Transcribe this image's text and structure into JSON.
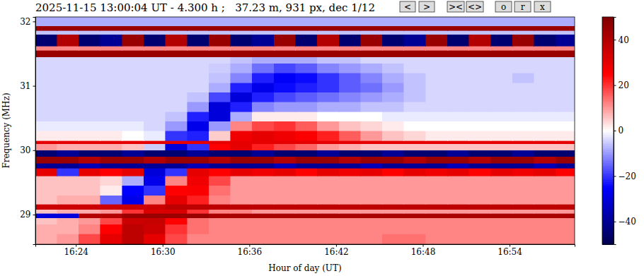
{
  "chart_data": {
    "type": "heatmap",
    "title": "2025-11-15 13:00:04 UT - 4.300 h ;   37.23 m, 931 px, dec 1/12",
    "buttons": [
      "<",
      ">",
      "><",
      "<>",
      "o",
      "r",
      "x"
    ],
    "x_label": "Hour of day (UT)",
    "y_label": "Frequency (MHz)",
    "xlim": [
      981.2,
      1018.5
    ],
    "xticks": [
      {
        "value": 984,
        "label": "16:24"
      },
      {
        "value": 990,
        "label": "16:30"
      },
      {
        "value": 996,
        "label": "16:36"
      },
      {
        "value": 1002,
        "label": "16:42"
      },
      {
        "value": 1008,
        "label": "16:48"
      },
      {
        "value": 1014,
        "label": "16:54"
      }
    ],
    "ylim": [
      28.54,
      32.07
    ],
    "yticks": [
      29,
      30,
      31,
      32
    ],
    "x_bins": [
      981.2,
      982.7,
      984.2,
      985.7,
      987.2,
      988.7,
      990.2,
      991.7,
      993.2,
      994.7,
      996.2,
      997.7,
      999.2,
      1000.7,
      1002.2,
      1003.7,
      1005.2,
      1006.7,
      1008.2,
      1009.7,
      1011.2,
      1012.7,
      1014.2,
      1015.7,
      1017.2,
      1018.5
    ],
    "y_bins": [
      28.54,
      28.7,
      28.85,
      28.95,
      29.02,
      29.08,
      29.16,
      29.3,
      29.45,
      29.6,
      29.72,
      29.8,
      29.9,
      30.0,
      30.1,
      30.15,
      30.3,
      30.45,
      30.6,
      30.75,
      30.9,
      31.05,
      31.2,
      31.35,
      31.45,
      31.55,
      31.62,
      31.8,
      31.86,
      31.93,
      32.07
    ],
    "cells": [
      [
        8,
        10,
        18,
        30,
        38,
        30,
        18,
        12,
        12,
        12,
        12,
        12,
        12,
        12,
        12,
        12,
        14,
        14,
        12,
        12,
        12,
        12,
        12,
        12,
        12
      ],
      [
        8,
        8,
        12,
        25,
        38,
        35,
        20,
        14,
        12,
        12,
        12,
        12,
        12,
        12,
        12,
        12,
        12,
        12,
        12,
        12,
        12,
        12,
        12,
        12,
        12
      ],
      [
        6,
        8,
        10,
        18,
        35,
        36,
        25,
        14,
        12,
        12,
        12,
        12,
        12,
        12,
        12,
        12,
        12,
        12,
        12,
        12,
        12,
        12,
        12,
        12,
        12
      ],
      [
        -30,
        -30,
        40,
        40,
        45,
        45,
        45,
        45,
        42,
        42,
        42,
        42,
        42,
        42,
        42,
        42,
        42,
        42,
        42,
        42,
        42,
        42,
        42,
        42,
        42
      ],
      [
        6,
        8,
        8,
        10,
        20,
        32,
        32,
        20,
        12,
        12,
        10,
        10,
        10,
        10,
        10,
        10,
        10,
        10,
        10,
        10,
        10,
        10,
        10,
        10,
        10
      ],
      [
        35,
        35,
        35,
        35,
        35,
        35,
        38,
        38,
        38,
        38,
        38,
        38,
        38,
        38,
        38,
        38,
        38,
        38,
        38,
        38,
        38,
        38,
        38,
        38,
        38
      ],
      [
        6,
        8,
        8,
        -15,
        -28,
        12,
        30,
        22,
        12,
        10,
        10,
        10,
        10,
        10,
        10,
        10,
        10,
        10,
        10,
        10,
        10,
        10,
        10,
        10,
        10
      ],
      [
        6,
        6,
        6,
        2,
        -25,
        -20,
        25,
        26,
        14,
        10,
        10,
        10,
        10,
        10,
        10,
        10,
        10,
        10,
        10,
        10,
        10,
        10,
        10,
        10,
        10
      ],
      [
        6,
        6,
        6,
        4,
        -8,
        -28,
        12,
        28,
        18,
        10,
        10,
        10,
        10,
        10,
        10,
        10,
        10,
        10,
        10,
        10,
        10,
        10,
        10,
        10,
        10
      ],
      [
        30,
        -20,
        30,
        25,
        30,
        -30,
        -20,
        30,
        25,
        30,
        28,
        30,
        25,
        30,
        28,
        30,
        25,
        30,
        28,
        30,
        25,
        30,
        28,
        30,
        25
      ],
      [
        -40,
        -40,
        -35,
        -40,
        -40,
        -40,
        -40,
        -35,
        -40,
        -40,
        -40,
        -35,
        -40,
        -40,
        -40,
        -35,
        -40,
        -40,
        -40,
        -35,
        -40,
        -40,
        -40,
        -35,
        -40
      ],
      [
        45,
        45,
        40,
        45,
        45,
        40,
        45,
        45,
        40,
        45,
        45,
        40,
        45,
        45,
        40,
        45,
        45,
        40,
        45,
        45,
        40,
        45,
        45,
        40,
        45
      ],
      [
        -45,
        -40,
        -45,
        -45,
        -40,
        -45,
        -45,
        -40,
        -45,
        -45,
        -40,
        -45,
        -45,
        -40,
        -45,
        -45,
        -40,
        -45,
        -45,
        -40,
        -45,
        -45,
        -40,
        -45,
        -45
      ],
      [
        10,
        8,
        8,
        8,
        6,
        -5,
        -30,
        -20,
        25,
        30,
        22,
        18,
        15,
        10,
        8,
        6,
        6,
        6,
        6,
        6,
        6,
        6,
        6,
        6,
        6
      ],
      [
        30,
        30,
        30,
        30,
        30,
        30,
        30,
        30,
        30,
        30,
        30,
        30,
        30,
        30,
        30,
        30,
        30,
        30,
        30,
        30,
        30,
        30,
        30,
        30,
        30
      ],
      [
        2,
        2,
        2,
        2,
        0,
        -2,
        -20,
        -22,
        5,
        28,
        30,
        28,
        26,
        22,
        16,
        10,
        6,
        4,
        2,
        2,
        2,
        2,
        2,
        2,
        2
      ],
      [
        -2,
        -2,
        -2,
        -2,
        -2,
        -4,
        -10,
        -28,
        -10,
        12,
        18,
        20,
        16,
        10,
        6,
        4,
        2,
        0,
        0,
        0,
        0,
        0,
        0,
        0,
        0
      ],
      [
        -4,
        -4,
        -4,
        -4,
        -4,
        -4,
        -6,
        -22,
        -30,
        -8,
        2,
        2,
        2,
        0,
        0,
        0,
        -2,
        -2,
        -2,
        -2,
        -2,
        -2,
        -2,
        -2,
        -2
      ],
      [
        -4,
        -4,
        -4,
        -4,
        -4,
        -4,
        -4,
        -10,
        -30,
        -22,
        -12,
        -10,
        -10,
        -8,
        -8,
        -6,
        -6,
        -4,
        -4,
        -4,
        -4,
        -4,
        -4,
        -4,
        -4
      ],
      [
        -4,
        -4,
        -4,
        -4,
        -4,
        -4,
        -4,
        -6,
        -18,
        -30,
        -22,
        -18,
        -16,
        -14,
        -12,
        -10,
        -8,
        -6,
        -4,
        -4,
        -4,
        -4,
        -4,
        -4,
        -4
      ],
      [
        -4,
        -4,
        -4,
        -4,
        -4,
        -4,
        -4,
        -4,
        -8,
        -22,
        -28,
        -24,
        -22,
        -20,
        -16,
        -14,
        -10,
        -6,
        -4,
        -4,
        -4,
        -4,
        -4,
        -4,
        -4
      ],
      [
        -4,
        -4,
        -4,
        -4,
        -4,
        -4,
        -4,
        -4,
        -6,
        -12,
        -22,
        -26,
        -24,
        -20,
        -16,
        -12,
        -8,
        -6,
        -4,
        -4,
        -4,
        -4,
        -6,
        -4,
        -4
      ],
      [
        -4,
        -4,
        -4,
        -4,
        -4,
        -4,
        -4,
        -4,
        -5,
        -8,
        -14,
        -18,
        -16,
        -12,
        -10,
        -8,
        -6,
        -4,
        -4,
        -4,
        -4,
        -4,
        -4,
        -4,
        -4
      ],
      [
        -4,
        -4,
        -4,
        -4,
        -4,
        -4,
        -4,
        -4,
        -4,
        -6,
        -8,
        -8,
        -8,
        -6,
        -6,
        -4,
        -4,
        -4,
        -4,
        -4,
        -4,
        -4,
        -4,
        -4,
        -4
      ],
      [
        45,
        45,
        45,
        45,
        45,
        45,
        45,
        45,
        45,
        45,
        45,
        45,
        45,
        45,
        45,
        45,
        45,
        45,
        45,
        45,
        45,
        45,
        45,
        45,
        45
      ],
      [
        12,
        12,
        12,
        12,
        12,
        12,
        12,
        12,
        12,
        12,
        12,
        12,
        12,
        12,
        12,
        12,
        12,
        12,
        12,
        12,
        12,
        12,
        12,
        12,
        12
      ],
      [
        -45,
        40,
        -45,
        -40,
        45,
        -45,
        40,
        -45,
        45,
        -45,
        -40,
        45,
        -45,
        40,
        -45,
        45,
        -45,
        -40,
        45,
        -45,
        40,
        -45,
        45,
        -45,
        -40
      ],
      [
        -6,
        -6,
        -6,
        -6,
        -6,
        -6,
        -6,
        -6,
        -6,
        -6,
        -6,
        -6,
        -6,
        -6,
        -6,
        -6,
        -6,
        -6,
        -6,
        -6,
        -6,
        -6,
        -6,
        -6,
        -6
      ],
      [
        45,
        45,
        45,
        45,
        45,
        45,
        45,
        45,
        45,
        45,
        45,
        45,
        45,
        45,
        45,
        45,
        45,
        45,
        45,
        45,
        45,
        45,
        45,
        45,
        45
      ],
      [
        -8,
        -8,
        -8,
        -8,
        -8,
        -8,
        -8,
        -8,
        -8,
        -8,
        -8,
        -8,
        -8,
        -8,
        -8,
        -8,
        -8,
        -8,
        -8,
        -8,
        -8,
        -8,
        -8,
        -8,
        -8
      ]
    ],
    "colorbar": {
      "range": [
        -50,
        50
      ],
      "ticks": [
        {
          "value": -40,
          "label": "−40"
        },
        {
          "value": -20,
          "label": "−20"
        },
        0,
        20,
        40
      ]
    }
  }
}
